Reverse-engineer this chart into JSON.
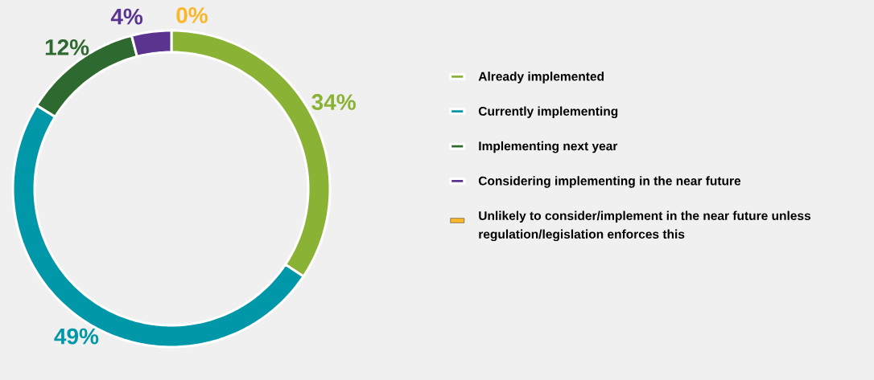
{
  "chart_data": {
    "type": "donut",
    "categories": [
      "Already implemented",
      "Currently implementing",
      "Implementing next year",
      "Considering implementing in the near future",
      "Unlikely to consider/implement in the near future unless regulation/legislation enforces this"
    ],
    "values": [
      34,
      49,
      12,
      4,
      0
    ],
    "value_labels": [
      "34%",
      "49%",
      "12%",
      "4%",
      "0%"
    ],
    "colors": [
      "#8ab234",
      "#0097a9",
      "#2e6a2f",
      "#5b3490",
      "#fbb72a"
    ],
    "legend": "right"
  }
}
